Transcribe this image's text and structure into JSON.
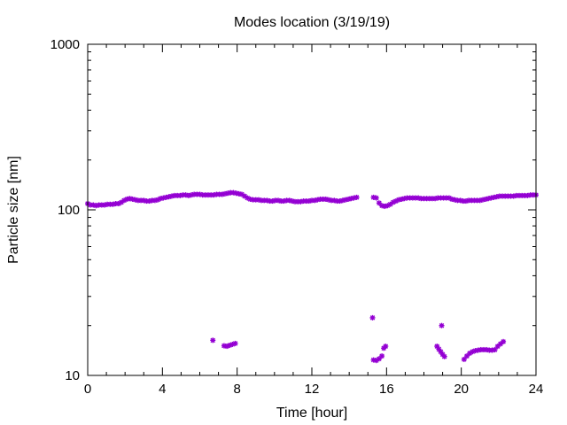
{
  "chart_data": {
    "type": "scatter",
    "title": "Modes location (3/19/19)",
    "xlabel": "Time [hour]",
    "ylabel": "Particle size [nm]",
    "xlim": [
      0,
      24
    ],
    "ylim": [
      10,
      1000
    ],
    "yscale": "log",
    "grid": false,
    "legend": "none",
    "xticks": [
      0,
      4,
      8,
      12,
      16,
      20,
      24
    ],
    "xtick_labels": [
      "0",
      "4",
      "8",
      "12",
      "16",
      "20",
      "24"
    ],
    "xminor_step": 1,
    "yticks": [
      10,
      100,
      1000
    ],
    "ytick_labels": [
      "10",
      "100",
      "1000"
    ],
    "marker_color": "#9400d3",
    "series": [
      {
        "points": [
          [
            0.0,
            109
          ],
          [
            0.15,
            107
          ],
          [
            0.3,
            107
          ],
          [
            0.45,
            106
          ],
          [
            0.6,
            107
          ],
          [
            0.75,
            107
          ],
          [
            0.9,
            107
          ],
          [
            1.05,
            108
          ],
          [
            1.2,
            108
          ],
          [
            1.35,
            108
          ],
          [
            1.5,
            109
          ],
          [
            1.65,
            109
          ],
          [
            1.8,
            111
          ],
          [
            1.95,
            114
          ],
          [
            2.1,
            116
          ],
          [
            2.25,
            117
          ],
          [
            2.4,
            116
          ],
          [
            2.55,
            115
          ],
          [
            2.7,
            114
          ],
          [
            2.85,
            114
          ],
          [
            3.0,
            114
          ],
          [
            3.15,
            113
          ],
          [
            3.3,
            113
          ],
          [
            3.45,
            114
          ],
          [
            3.6,
            114
          ],
          [
            3.75,
            115
          ],
          [
            3.9,
            117
          ],
          [
            4.05,
            118
          ],
          [
            4.2,
            119
          ],
          [
            4.35,
            120
          ],
          [
            4.5,
            121
          ],
          [
            4.65,
            122
          ],
          [
            4.8,
            122
          ],
          [
            4.95,
            122
          ],
          [
            5.1,
            123
          ],
          [
            5.25,
            123
          ],
          [
            5.4,
            122
          ],
          [
            5.55,
            123
          ],
          [
            5.7,
            124
          ],
          [
            5.85,
            124
          ],
          [
            6.0,
            124
          ],
          [
            6.15,
            123
          ],
          [
            6.3,
            123
          ],
          [
            6.45,
            123
          ],
          [
            6.6,
            123
          ],
          [
            6.75,
            123
          ],
          [
            6.9,
            124
          ],
          [
            7.05,
            124
          ],
          [
            7.2,
            124
          ],
          [
            7.35,
            125
          ],
          [
            7.5,
            126
          ],
          [
            7.65,
            127
          ],
          [
            7.8,
            127
          ],
          [
            7.95,
            126
          ],
          [
            8.1,
            125
          ],
          [
            8.25,
            124
          ],
          [
            8.4,
            121
          ],
          [
            8.55,
            118
          ],
          [
            8.7,
            116
          ],
          [
            8.85,
            115
          ],
          [
            9.0,
            115
          ],
          [
            9.15,
            115
          ],
          [
            9.3,
            114
          ],
          [
            9.45,
            114
          ],
          [
            9.6,
            114
          ],
          [
            9.75,
            113
          ],
          [
            9.9,
            113
          ],
          [
            10.05,
            114
          ],
          [
            10.2,
            114
          ],
          [
            10.35,
            113
          ],
          [
            10.5,
            113
          ],
          [
            10.65,
            114
          ],
          [
            10.8,
            114
          ],
          [
            10.95,
            113
          ],
          [
            11.1,
            112
          ],
          [
            11.25,
            112
          ],
          [
            11.4,
            112
          ],
          [
            11.55,
            113
          ],
          [
            11.7,
            113
          ],
          [
            11.85,
            113
          ],
          [
            12.0,
            114
          ],
          [
            12.15,
            114
          ],
          [
            12.3,
            115
          ],
          [
            12.45,
            116
          ],
          [
            12.6,
            116
          ],
          [
            12.75,
            116
          ],
          [
            12.9,
            115
          ],
          [
            13.05,
            114
          ],
          [
            13.2,
            114
          ],
          [
            13.35,
            113
          ],
          [
            13.5,
            113
          ],
          [
            13.65,
            114
          ],
          [
            13.8,
            115
          ],
          [
            13.95,
            116
          ],
          [
            14.1,
            117
          ],
          [
            14.25,
            118
          ],
          [
            14.4,
            119
          ],
          [
            15.3,
            119
          ],
          [
            15.45,
            118
          ],
          [
            15.6,
            110
          ],
          [
            15.75,
            106
          ],
          [
            15.9,
            105
          ],
          [
            16.05,
            106
          ],
          [
            16.2,
            108
          ],
          [
            16.35,
            111
          ],
          [
            16.5,
            113
          ],
          [
            16.65,
            115
          ],
          [
            16.8,
            116
          ],
          [
            16.95,
            117
          ],
          [
            17.1,
            118
          ],
          [
            17.25,
            118
          ],
          [
            17.4,
            118
          ],
          [
            17.55,
            118
          ],
          [
            17.7,
            118
          ],
          [
            17.85,
            117
          ],
          [
            18.0,
            117
          ],
          [
            18.15,
            117
          ],
          [
            18.3,
            117
          ],
          [
            18.45,
            117
          ],
          [
            18.6,
            117
          ],
          [
            18.75,
            118
          ],
          [
            18.9,
            118
          ],
          [
            19.05,
            118
          ],
          [
            19.2,
            118
          ],
          [
            19.35,
            118
          ],
          [
            19.5,
            116
          ],
          [
            19.65,
            115
          ],
          [
            19.8,
            114
          ],
          [
            19.95,
            114
          ],
          [
            20.1,
            113
          ],
          [
            20.25,
            113
          ],
          [
            20.4,
            114
          ],
          [
            20.55,
            114
          ],
          [
            20.7,
            114
          ],
          [
            20.85,
            114
          ],
          [
            21.0,
            114
          ],
          [
            21.15,
            115
          ],
          [
            21.3,
            116
          ],
          [
            21.45,
            117
          ],
          [
            21.6,
            118
          ],
          [
            21.75,
            119
          ],
          [
            21.9,
            120
          ],
          [
            22.05,
            121
          ],
          [
            22.2,
            121
          ],
          [
            22.35,
            121
          ],
          [
            22.5,
            121
          ],
          [
            22.65,
            121
          ],
          [
            22.8,
            121
          ],
          [
            22.95,
            122
          ],
          [
            23.1,
            122
          ],
          [
            23.25,
            122
          ],
          [
            23.4,
            122
          ],
          [
            23.55,
            122
          ],
          [
            23.7,
            123
          ],
          [
            23.85,
            123
          ],
          [
            24.0,
            123
          ]
        ]
      },
      {
        "points": [
          [
            6.7,
            16.3
          ],
          [
            7.3,
            15.1
          ],
          [
            7.45,
            15.0
          ],
          [
            7.6,
            15.2
          ],
          [
            7.75,
            15.4
          ],
          [
            7.9,
            15.6
          ],
          [
            15.25,
            22.3
          ],
          [
            15.3,
            12.4
          ],
          [
            15.45,
            12.3
          ],
          [
            15.6,
            12.6
          ],
          [
            15.75,
            13.1
          ],
          [
            15.85,
            14.6
          ],
          [
            15.95,
            15.0
          ],
          [
            18.7,
            15.0
          ],
          [
            18.8,
            14.4
          ],
          [
            18.9,
            13.9
          ],
          [
            18.95,
            20.0
          ],
          [
            19.0,
            13.4
          ],
          [
            19.1,
            13.0
          ],
          [
            20.15,
            12.5
          ],
          [
            20.3,
            13.1
          ],
          [
            20.45,
            13.6
          ],
          [
            20.6,
            13.9
          ],
          [
            20.75,
            14.1
          ],
          [
            20.9,
            14.2
          ],
          [
            21.05,
            14.3
          ],
          [
            21.2,
            14.3
          ],
          [
            21.35,
            14.3
          ],
          [
            21.5,
            14.2
          ],
          [
            21.65,
            14.2
          ],
          [
            21.8,
            14.3
          ],
          [
            21.95,
            15.0
          ],
          [
            22.1,
            15.5
          ],
          [
            22.25,
            16.0
          ]
        ]
      }
    ]
  }
}
